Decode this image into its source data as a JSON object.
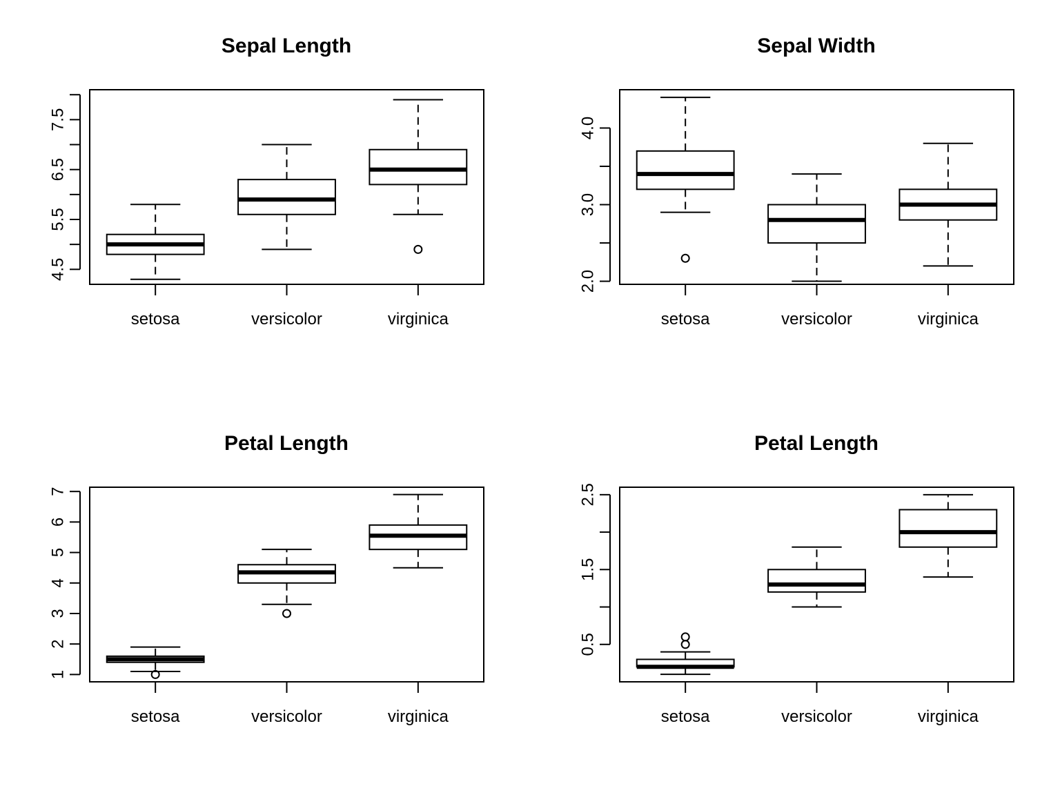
{
  "chart_data": [
    {
      "type": "box",
      "title": "Sepal Length",
      "xlabel": "",
      "ylabel": "",
      "categories": [
        "setosa",
        "versicolor",
        "virginica"
      ],
      "ylim": [
        4.2,
        8.1
      ],
      "yticks": [
        4.5,
        5.0,
        5.5,
        6.0,
        6.5,
        7.0,
        7.5,
        8.0
      ],
      "ytick_labels": [
        "4.5",
        "",
        "5.5",
        "",
        "6.5",
        "",
        "7.5",
        ""
      ],
      "boxes": [
        {
          "category": "setosa",
          "min": 4.3,
          "q1": 4.8,
          "median": 5.0,
          "q3": 5.2,
          "max": 5.8,
          "outliers": []
        },
        {
          "category": "versicolor",
          "min": 4.9,
          "q1": 5.6,
          "median": 5.9,
          "q3": 6.3,
          "max": 7.0,
          "outliers": []
        },
        {
          "category": "virginica",
          "min": 5.6,
          "q1": 6.2,
          "median": 6.5,
          "q3": 6.9,
          "max": 7.9,
          "outliers": [
            4.9
          ]
        }
      ]
    },
    {
      "type": "box",
      "title": "Sepal Width",
      "xlabel": "",
      "ylabel": "",
      "categories": [
        "setosa",
        "versicolor",
        "virginica"
      ],
      "ylim": [
        1.96,
        4.5
      ],
      "yticks": [
        2.0,
        2.5,
        3.0,
        3.5,
        4.0
      ],
      "ytick_labels": [
        "2.0",
        "",
        "3.0",
        "",
        "4.0"
      ],
      "boxes": [
        {
          "category": "setosa",
          "min": 2.9,
          "q1": 3.2,
          "median": 3.4,
          "q3": 3.7,
          "max": 4.4,
          "outliers": [
            2.3
          ]
        },
        {
          "category": "versicolor",
          "min": 2.0,
          "q1": 2.5,
          "median": 2.8,
          "q3": 3.0,
          "max": 3.4,
          "outliers": []
        },
        {
          "category": "virginica",
          "min": 2.2,
          "q1": 2.8,
          "median": 3.0,
          "q3": 3.2,
          "max": 3.8,
          "outliers": []
        }
      ]
    },
    {
      "type": "box",
      "title": "Petal Length",
      "xlabel": "",
      "ylabel": "",
      "categories": [
        "setosa",
        "versicolor",
        "virginica"
      ],
      "ylim": [
        0.76,
        7.14
      ],
      "yticks": [
        1,
        2,
        3,
        4,
        5,
        6,
        7
      ],
      "ytick_labels": [
        "1",
        "2",
        "3",
        "4",
        "5",
        "6",
        "7"
      ],
      "boxes": [
        {
          "category": "setosa",
          "min": 1.1,
          "q1": 1.4,
          "median": 1.5,
          "q3": 1.6,
          "max": 1.9,
          "outliers": [
            1.0
          ]
        },
        {
          "category": "versicolor",
          "min": 3.3,
          "q1": 4.0,
          "median": 4.35,
          "q3": 4.6,
          "max": 5.1,
          "outliers": [
            3.0
          ]
        },
        {
          "category": "virginica",
          "min": 4.5,
          "q1": 5.1,
          "median": 5.55,
          "q3": 5.9,
          "max": 6.9,
          "outliers": []
        }
      ]
    },
    {
      "type": "box",
      "title": "Petal Length",
      "xlabel": "",
      "ylabel": "",
      "categories": [
        "setosa",
        "versicolor",
        "virginica"
      ],
      "ylim": [
        0.0,
        2.6
      ],
      "yticks": [
        0.5,
        1.0,
        1.5,
        2.0,
        2.5
      ],
      "ytick_labels": [
        "0.5",
        "",
        "1.5",
        "",
        "2.5"
      ],
      "boxes": [
        {
          "category": "setosa",
          "min": 0.1,
          "q1": 0.2,
          "median": 0.2,
          "q3": 0.3,
          "max": 0.4,
          "outliers": [
            0.5,
            0.6
          ]
        },
        {
          "category": "versicolor",
          "min": 1.0,
          "q1": 1.2,
          "median": 1.3,
          "q3": 1.5,
          "max": 1.8,
          "outliers": []
        },
        {
          "category": "virginica",
          "min": 1.4,
          "q1": 1.8,
          "median": 2.0,
          "q3": 2.3,
          "max": 2.5,
          "outliers": []
        }
      ]
    }
  ]
}
